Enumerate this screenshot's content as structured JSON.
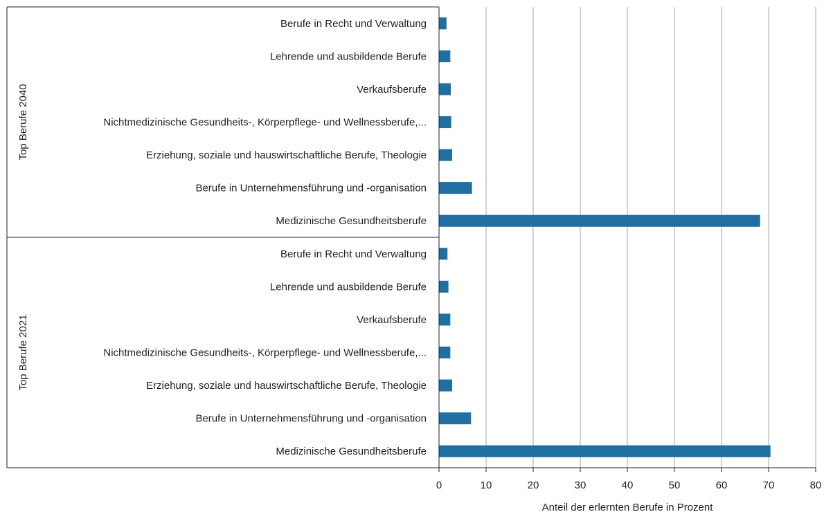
{
  "chart_data": {
    "type": "bar",
    "orientation": "horizontal",
    "xlabel": "Anteil der erlernten  Berufe in Prozent",
    "xlim": [
      0,
      80
    ],
    "xticks": [
      0,
      10,
      20,
      30,
      40,
      50,
      60,
      70,
      80
    ],
    "grid": true,
    "bar_color": "#1f6fa3",
    "groups": [
      {
        "name": "Top Berufe 2040",
        "categories": [
          "Berufe in Recht und Verwaltung",
          "Lehrende und ausbildende Berufe",
          "Verkaufsberufe",
          "Nichtmedizinische Gesundheits-, Körperpflege- und Wellnessberufe,...",
          "Erziehung, soziale und hauswirtschaftliche Berufe, Theologie",
          "Berufe in Unternehmensführung und -organisation",
          "Medizinische Gesundheitsberufe"
        ],
        "values": [
          1.6,
          2.4,
          2.5,
          2.6,
          2.8,
          7.0,
          68.2
        ]
      },
      {
        "name": "Top Berufe 2021",
        "categories": [
          "Berufe in Recht und Verwaltung",
          "Lehrende und ausbildende Berufe",
          "Verkaufsberufe",
          "Nichtmedizinische Gesundheits-, Körperpflege- und Wellnessberufe,...",
          "Erziehung, soziale und hauswirtschaftliche Berufe, Theologie",
          "Berufe in Unternehmensführung und -organisation",
          "Medizinische Gesundheitsberufe"
        ],
        "values": [
          1.8,
          2.0,
          2.4,
          2.4,
          2.8,
          6.8,
          70.4
        ]
      }
    ]
  }
}
